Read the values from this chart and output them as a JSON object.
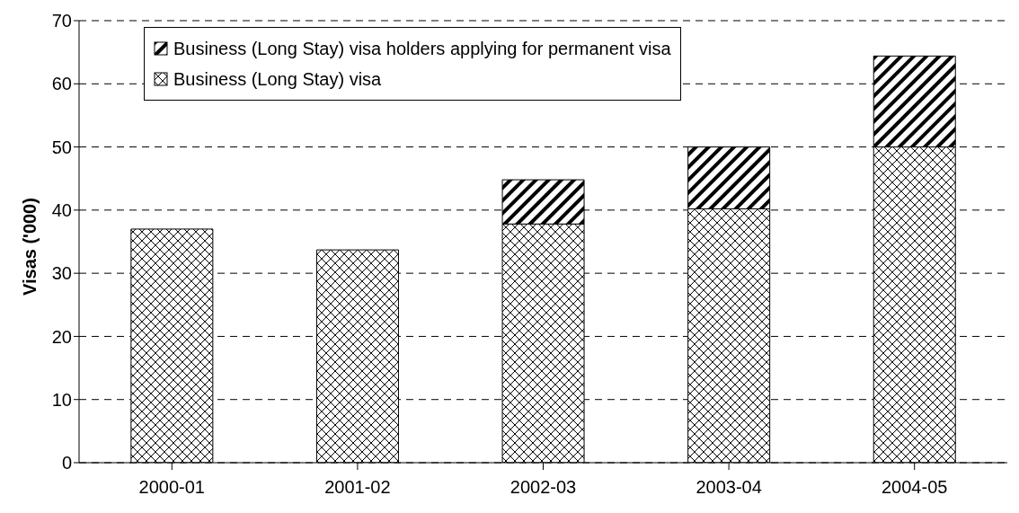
{
  "chart_data": {
    "type": "bar",
    "ylabel": "Visas ('000)",
    "categories": [
      "2000-01",
      "2001-02",
      "2002-03",
      "2003-04",
      "2004-05"
    ],
    "stacked": true,
    "series": [
      {
        "name": "Business (Long Stay) visa",
        "color": "#000000",
        "values": [
          37.0,
          33.7,
          37.8,
          40.2,
          50.0
        ]
      },
      {
        "name": "Business (Long Stay) visa holders applying for permanent visa",
        "color": "#000000",
        "values": [
          null,
          null,
          7.0,
          9.8,
          14.4
        ]
      }
    ],
    "ylim": [
      0,
      70
    ],
    "yticks": [
      0,
      10,
      20,
      30,
      40,
      50,
      60,
      70
    ],
    "grid": "y",
    "legend": "top"
  }
}
